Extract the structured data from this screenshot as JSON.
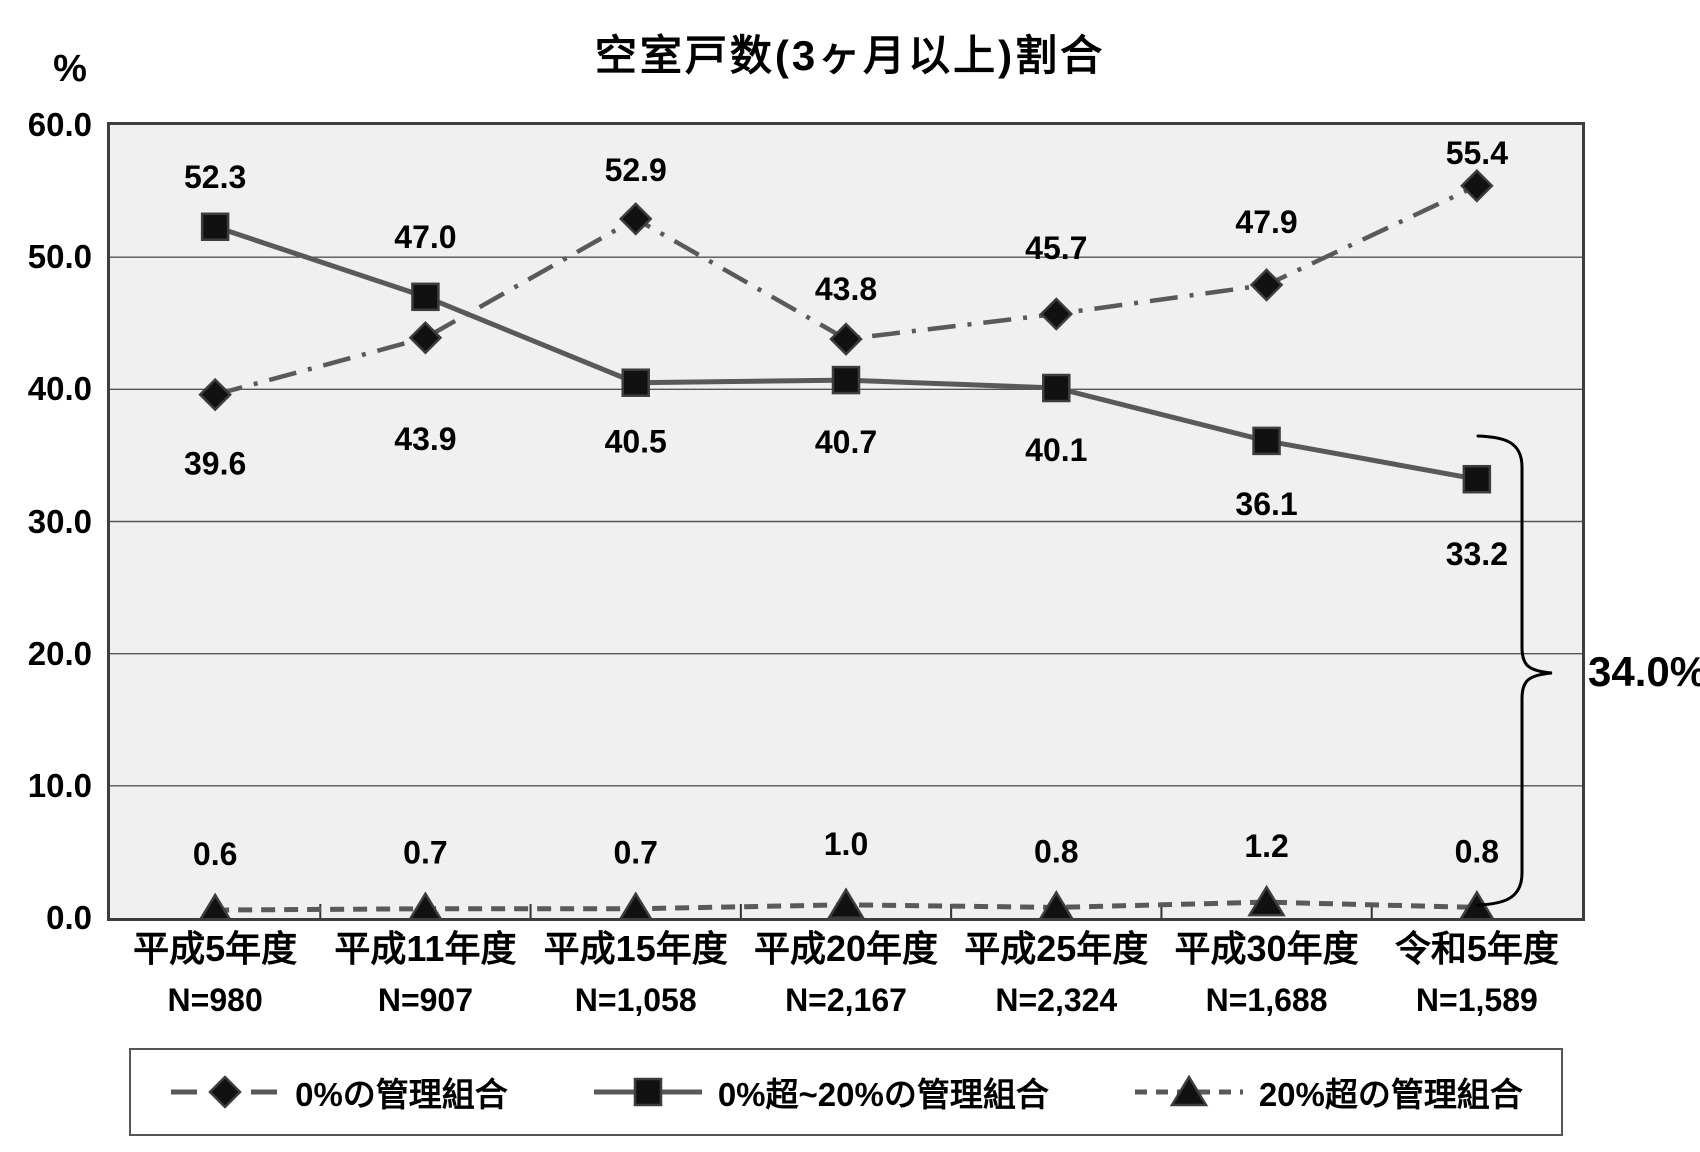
{
  "y_axis": {
    "unit_label": "%",
    "ticks": [
      "60.0",
      "50.0",
      "40.0",
      "30.0",
      "20.0",
      "10.0",
      "0.0"
    ]
  },
  "chart_data": {
    "type": "line",
    "title": "空室戸数(3ヶ月以上)割合",
    "ylabel": "%",
    "ylim": [
      0,
      60
    ],
    "ytick_interval": 10,
    "grid": true,
    "legend_position": "bottom",
    "categories": [
      "平成5年度",
      "平成11年度",
      "平成15年度",
      "平成20年度",
      "平成25年度",
      "平成30年度",
      "令和5年度"
    ],
    "sample_sizes": [
      "N=980",
      "N=907",
      "N=1,058",
      "N=2,167",
      "N=2,324",
      "N=1,688",
      "N=1,589"
    ],
    "series": [
      {
        "name": "0%の管理組合",
        "marker": "diamond",
        "line_style": "dash-dot",
        "values": [
          39.6,
          43.9,
          52.9,
          43.8,
          45.7,
          47.9,
          55.4
        ],
        "labels": [
          "39.6",
          "43.9",
          "52.9",
          "43.8",
          "45.7",
          "47.9",
          "55.4"
        ]
      },
      {
        "name": "0%超~20%の管理組合",
        "marker": "square",
        "line_style": "solid",
        "values": [
          52.3,
          47.0,
          40.5,
          40.7,
          40.1,
          36.1,
          33.2
        ],
        "labels": [
          "52.3",
          "47.0",
          "40.5",
          "40.7",
          "40.1",
          "36.1",
          "33.2"
        ]
      },
      {
        "name": "20%超の管理組合",
        "marker": "triangle",
        "line_style": "dashed",
        "values": [
          0.6,
          0.7,
          0.7,
          1.0,
          0.8,
          1.2,
          0.8
        ],
        "labels": [
          "0.6",
          "0.7",
          "0.7",
          "1.0",
          "0.8",
          "1.2",
          "0.8"
        ]
      }
    ],
    "annotation": {
      "label": "34.0%"
    }
  },
  "colors": {
    "line": "#595959",
    "marker_fill": "#111111",
    "marker_stroke": "#3d3d3d",
    "plot_background": "#f0f0f0",
    "plot_border": "#3d3d3d",
    "gridline": "#555555",
    "tick": "#333333",
    "brace": "#000000",
    "text": "#000000"
  }
}
